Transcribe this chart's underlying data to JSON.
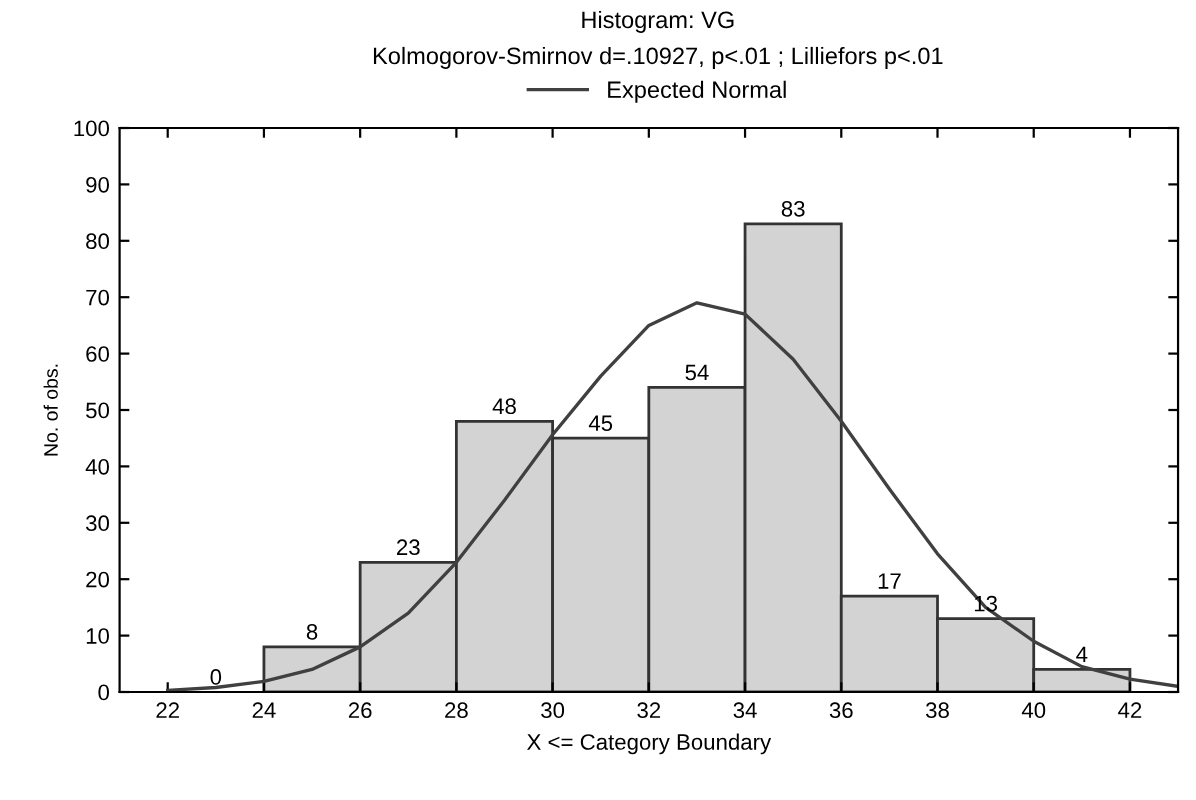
{
  "chart_data": {
    "type": "histogram",
    "title": "Histogram: VG",
    "subtitle": "Kolmogorov-Smirnov d=.10927, p<.01 ; Lilliefors p<.01",
    "xlabel": "X <= Category Boundary",
    "ylabel": "No. of obs.",
    "bins": [
      22,
      24,
      26,
      28,
      30,
      32,
      34,
      36,
      38,
      40,
      42
    ],
    "values": [
      0,
      8,
      23,
      48,
      45,
      54,
      83,
      17,
      13,
      4
    ],
    "color": "#d3d3d3",
    "value_labels": [
      "0",
      "8",
      "23",
      "48",
      "45",
      "54",
      "83",
      "17",
      "13",
      "4"
    ],
    "series": [
      {
        "type": "line",
        "name": "Expected Normal",
        "color": "#404040",
        "x": [
          22,
          23,
          24,
          25,
          26,
          27,
          28,
          29,
          30,
          31,
          32,
          33,
          34,
          35,
          36,
          37,
          38,
          39,
          40,
          41,
          42,
          43
        ],
        "values": [
          0.3,
          0.8,
          1.9,
          4,
          8,
          14,
          23,
          34,
          45.6,
          56,
          65,
          69,
          67,
          59,
          48,
          36,
          24.5,
          15,
          9,
          4.5,
          2.3,
          1
        ]
      }
    ],
    "xlim": [
      21,
      43
    ],
    "ylim": [
      0,
      100
    ],
    "xticks": [
      22,
      24,
      26,
      28,
      30,
      32,
      34,
      36,
      38,
      40,
      42
    ],
    "yticks": [
      0,
      10,
      20,
      30,
      40,
      50,
      60,
      70,
      80,
      90,
      100
    ],
    "grid": false,
    "legend": "top"
  }
}
